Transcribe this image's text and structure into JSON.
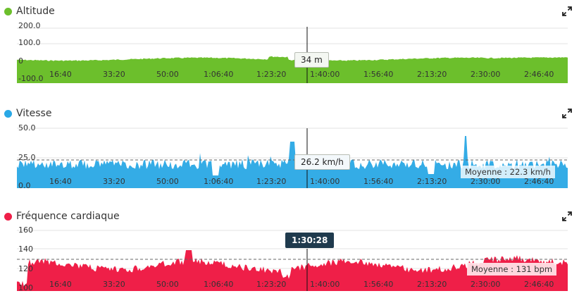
{
  "panels": [
    {
      "id": "altitude",
      "title": "Altitude",
      "color": "#6cbf2c",
      "y_labels": [
        "200.0",
        "100.0",
        "0",
        "-100.0"
      ],
      "x_labels": [
        "16:40",
        "33:20",
        "50:00",
        "1:06:40",
        "1:23:20",
        "1:40:00",
        "1:56:40",
        "2:13:20",
        "2:30:00",
        "2:46:40"
      ],
      "tooltip": "34 m",
      "average": ""
    },
    {
      "id": "speed",
      "title": "Vitesse",
      "color": "#29a8e6",
      "y_labels": [
        "50.0",
        "25.0",
        "0.0"
      ],
      "x_labels": [
        "16:40",
        "33:20",
        "50:00",
        "1:06:40",
        "1:23:20",
        "1:40:00",
        "1:56:40",
        "2:13:20",
        "2:30:00",
        "2:46:40"
      ],
      "tooltip": "26.2 km/h",
      "average": "Moyenne : 22.3 km/h"
    },
    {
      "id": "heart",
      "title": "Fréquence cardiaque",
      "color": "#ef1f48",
      "y_labels": [
        "160",
        "140",
        "120",
        "100"
      ],
      "x_labels": [
        "16:40",
        "33:20",
        "50:00",
        "1:06:40",
        "1:23:20",
        "1:40:00",
        "1:56:40",
        "2:13:20",
        "2:30:00",
        "2:46:40"
      ],
      "tooltip": "",
      "average": "Moyenne : 131 bpm"
    }
  ],
  "cursor_time": "1:30:28",
  "icons": {
    "expand": "expand-arrows-icon"
  }
}
